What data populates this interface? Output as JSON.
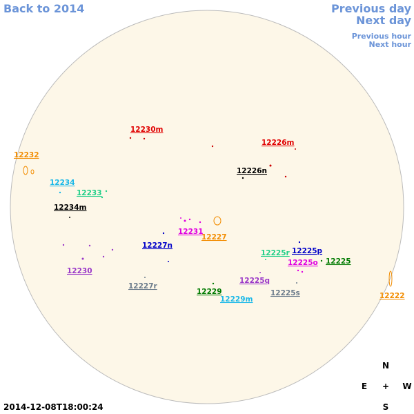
{
  "nav": {
    "back": "Back to 2014",
    "previous_day": "Previous day",
    "next_day": "Next day",
    "previous_hour": "Previous hour",
    "next_hour": "Next hour"
  },
  "timestamp": "2014-12-08T18:00:24",
  "compass": {
    "north": "N",
    "east": "E",
    "center": "+",
    "west": "W",
    "south": "S"
  },
  "regions": [
    "12230m",
    "12226m",
    "12232",
    "12226n",
    "12234",
    "12233",
    "12234m",
    "12231",
    "12227",
    "12227n",
    "12225r",
    "12225p",
    "12225o",
    "12225",
    "12230",
    "12225q",
    "12227r",
    "12229",
    "12229m",
    "12225s",
    "12222"
  ]
}
